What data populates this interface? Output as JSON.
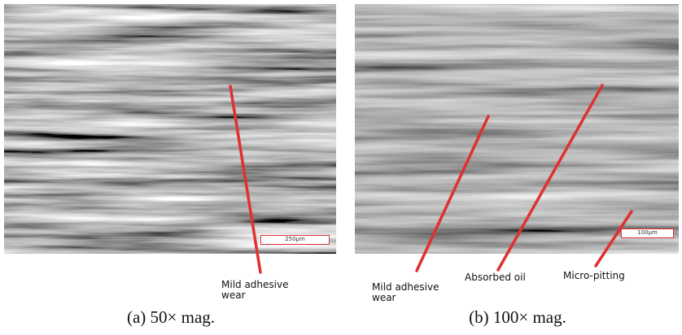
{
  "panels": [
    {
      "caption": "(a) 50× mag.",
      "scale_bar": "250µm",
      "annotations": [
        "Mild adhesive wear"
      ]
    },
    {
      "caption": "(b) 100× mag.",
      "scale_bar": "100µm",
      "annotations": [
        "Mild adhesive wear",
        "Absorbed oil",
        "Micro-pitting"
      ]
    }
  ]
}
